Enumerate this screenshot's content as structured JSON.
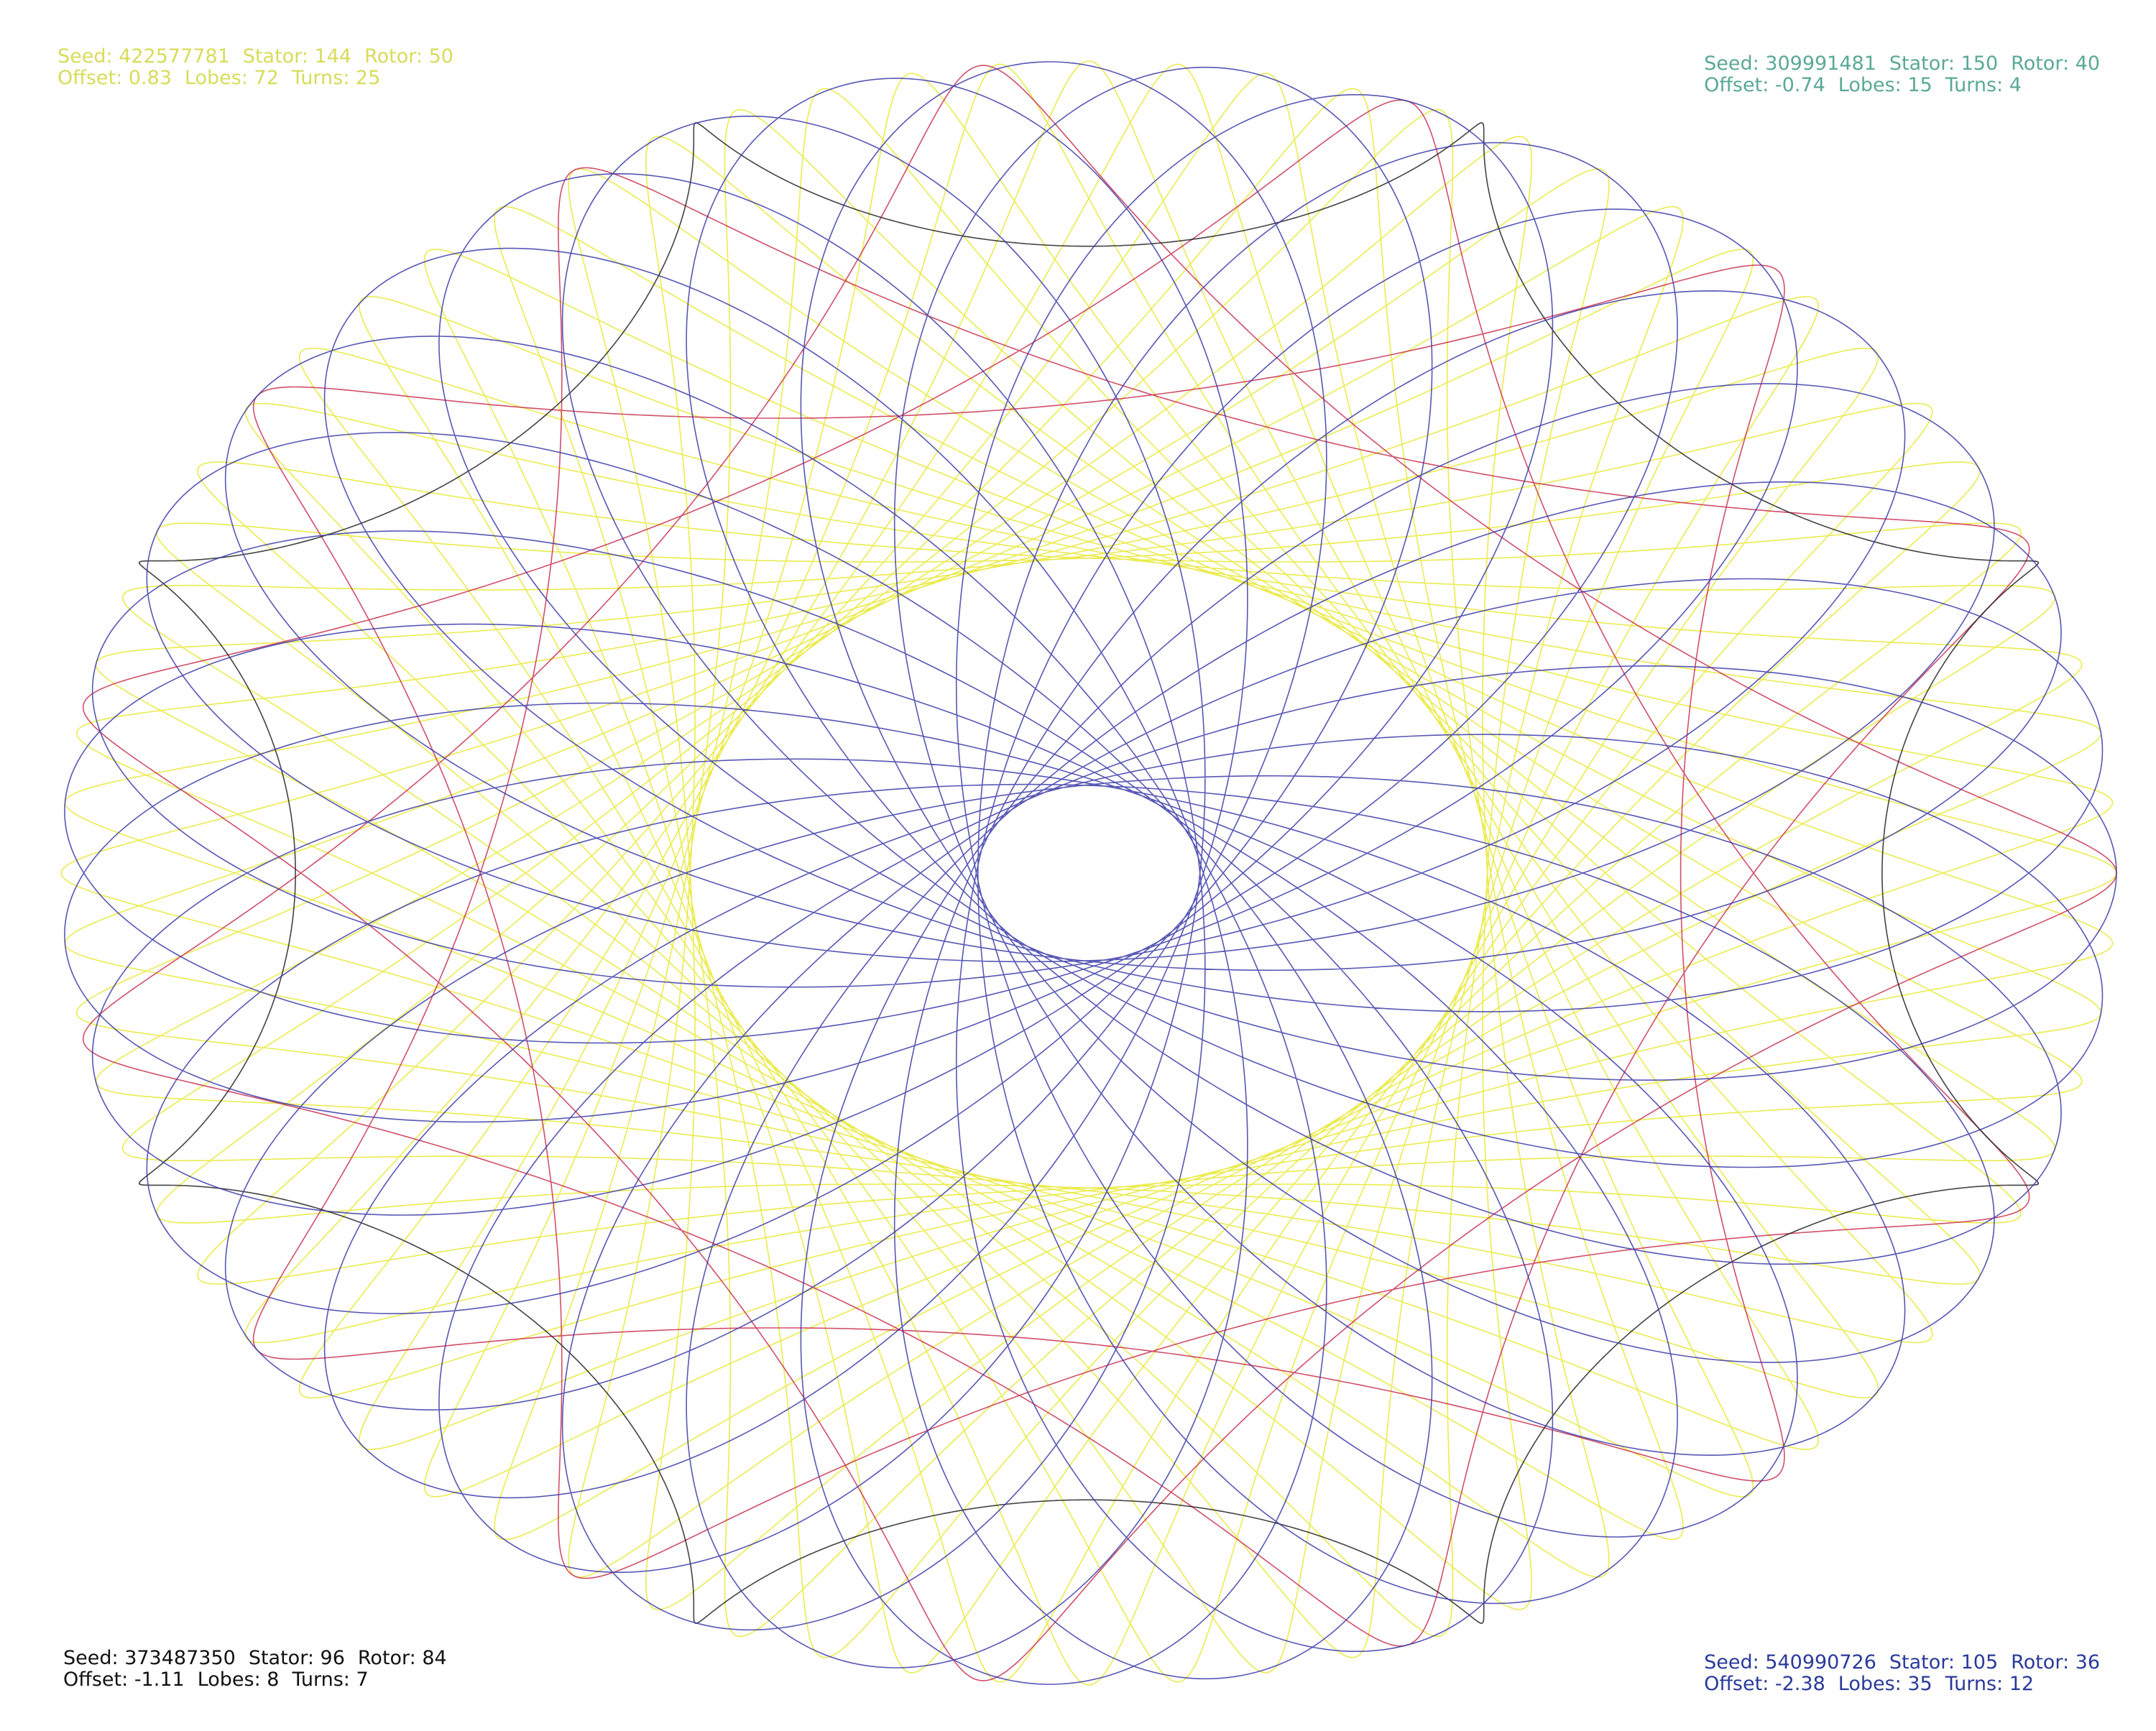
{
  "plots": [
    {
      "corner": "top-left",
      "text_color": "#d8dc5a",
      "pen_color": "#e8e830",
      "line1": [
        {
          "label": "Seed:",
          "value": 422577781
        },
        {
          "label": "Stator:",
          "value": 144
        },
        {
          "label": "Rotor:",
          "value": 50
        }
      ],
      "line2": [
        {
          "label": "Offset:",
          "value": 0.83
        },
        {
          "label": "Lobes:",
          "value": 72
        },
        {
          "label": "Turns:",
          "value": 25
        }
      ]
    },
    {
      "corner": "top-right",
      "text_color": "#5aa898",
      "pen_color": "#c8304f",
      "line1": [
        {
          "label": "Seed:",
          "value": 309991481
        },
        {
          "label": "Stator:",
          "value": 150
        },
        {
          "label": "Rotor:",
          "value": 40
        }
      ],
      "line2": [
        {
          "label": "Offset:",
          "value": -0.74
        },
        {
          "label": "Lobes:",
          "value": 15
        },
        {
          "label": "Turns:",
          "value": 4
        }
      ]
    },
    {
      "corner": "bottom-left",
      "text_color": "#111111",
      "pen_color": "#222222",
      "line1": [
        {
          "label": "Seed:",
          "value": 373487350
        },
        {
          "label": "Stator:",
          "value": 96
        },
        {
          "label": "Rotor:",
          "value": 84
        }
      ],
      "line2": [
        {
          "label": "Offset:",
          "value": -1.11
        },
        {
          "label": "Lobes:",
          "value": 8
        },
        {
          "label": "Turns:",
          "value": 7
        }
      ]
    },
    {
      "corner": "bottom-right",
      "text_color": "#2a3a9a",
      "pen_color": "#3a3aa8",
      "line1": [
        {
          "label": "Seed:",
          "value": 540990726
        },
        {
          "label": "Stator:",
          "value": 105
        },
        {
          "label": "Rotor:",
          "value": 36
        }
      ],
      "line2": [
        {
          "label": "Offset:",
          "value": -2.38
        },
        {
          "label": "Lobes:",
          "value": 35
        },
        {
          "label": "Turns:",
          "value": 12
        }
      ]
    }
  ]
}
